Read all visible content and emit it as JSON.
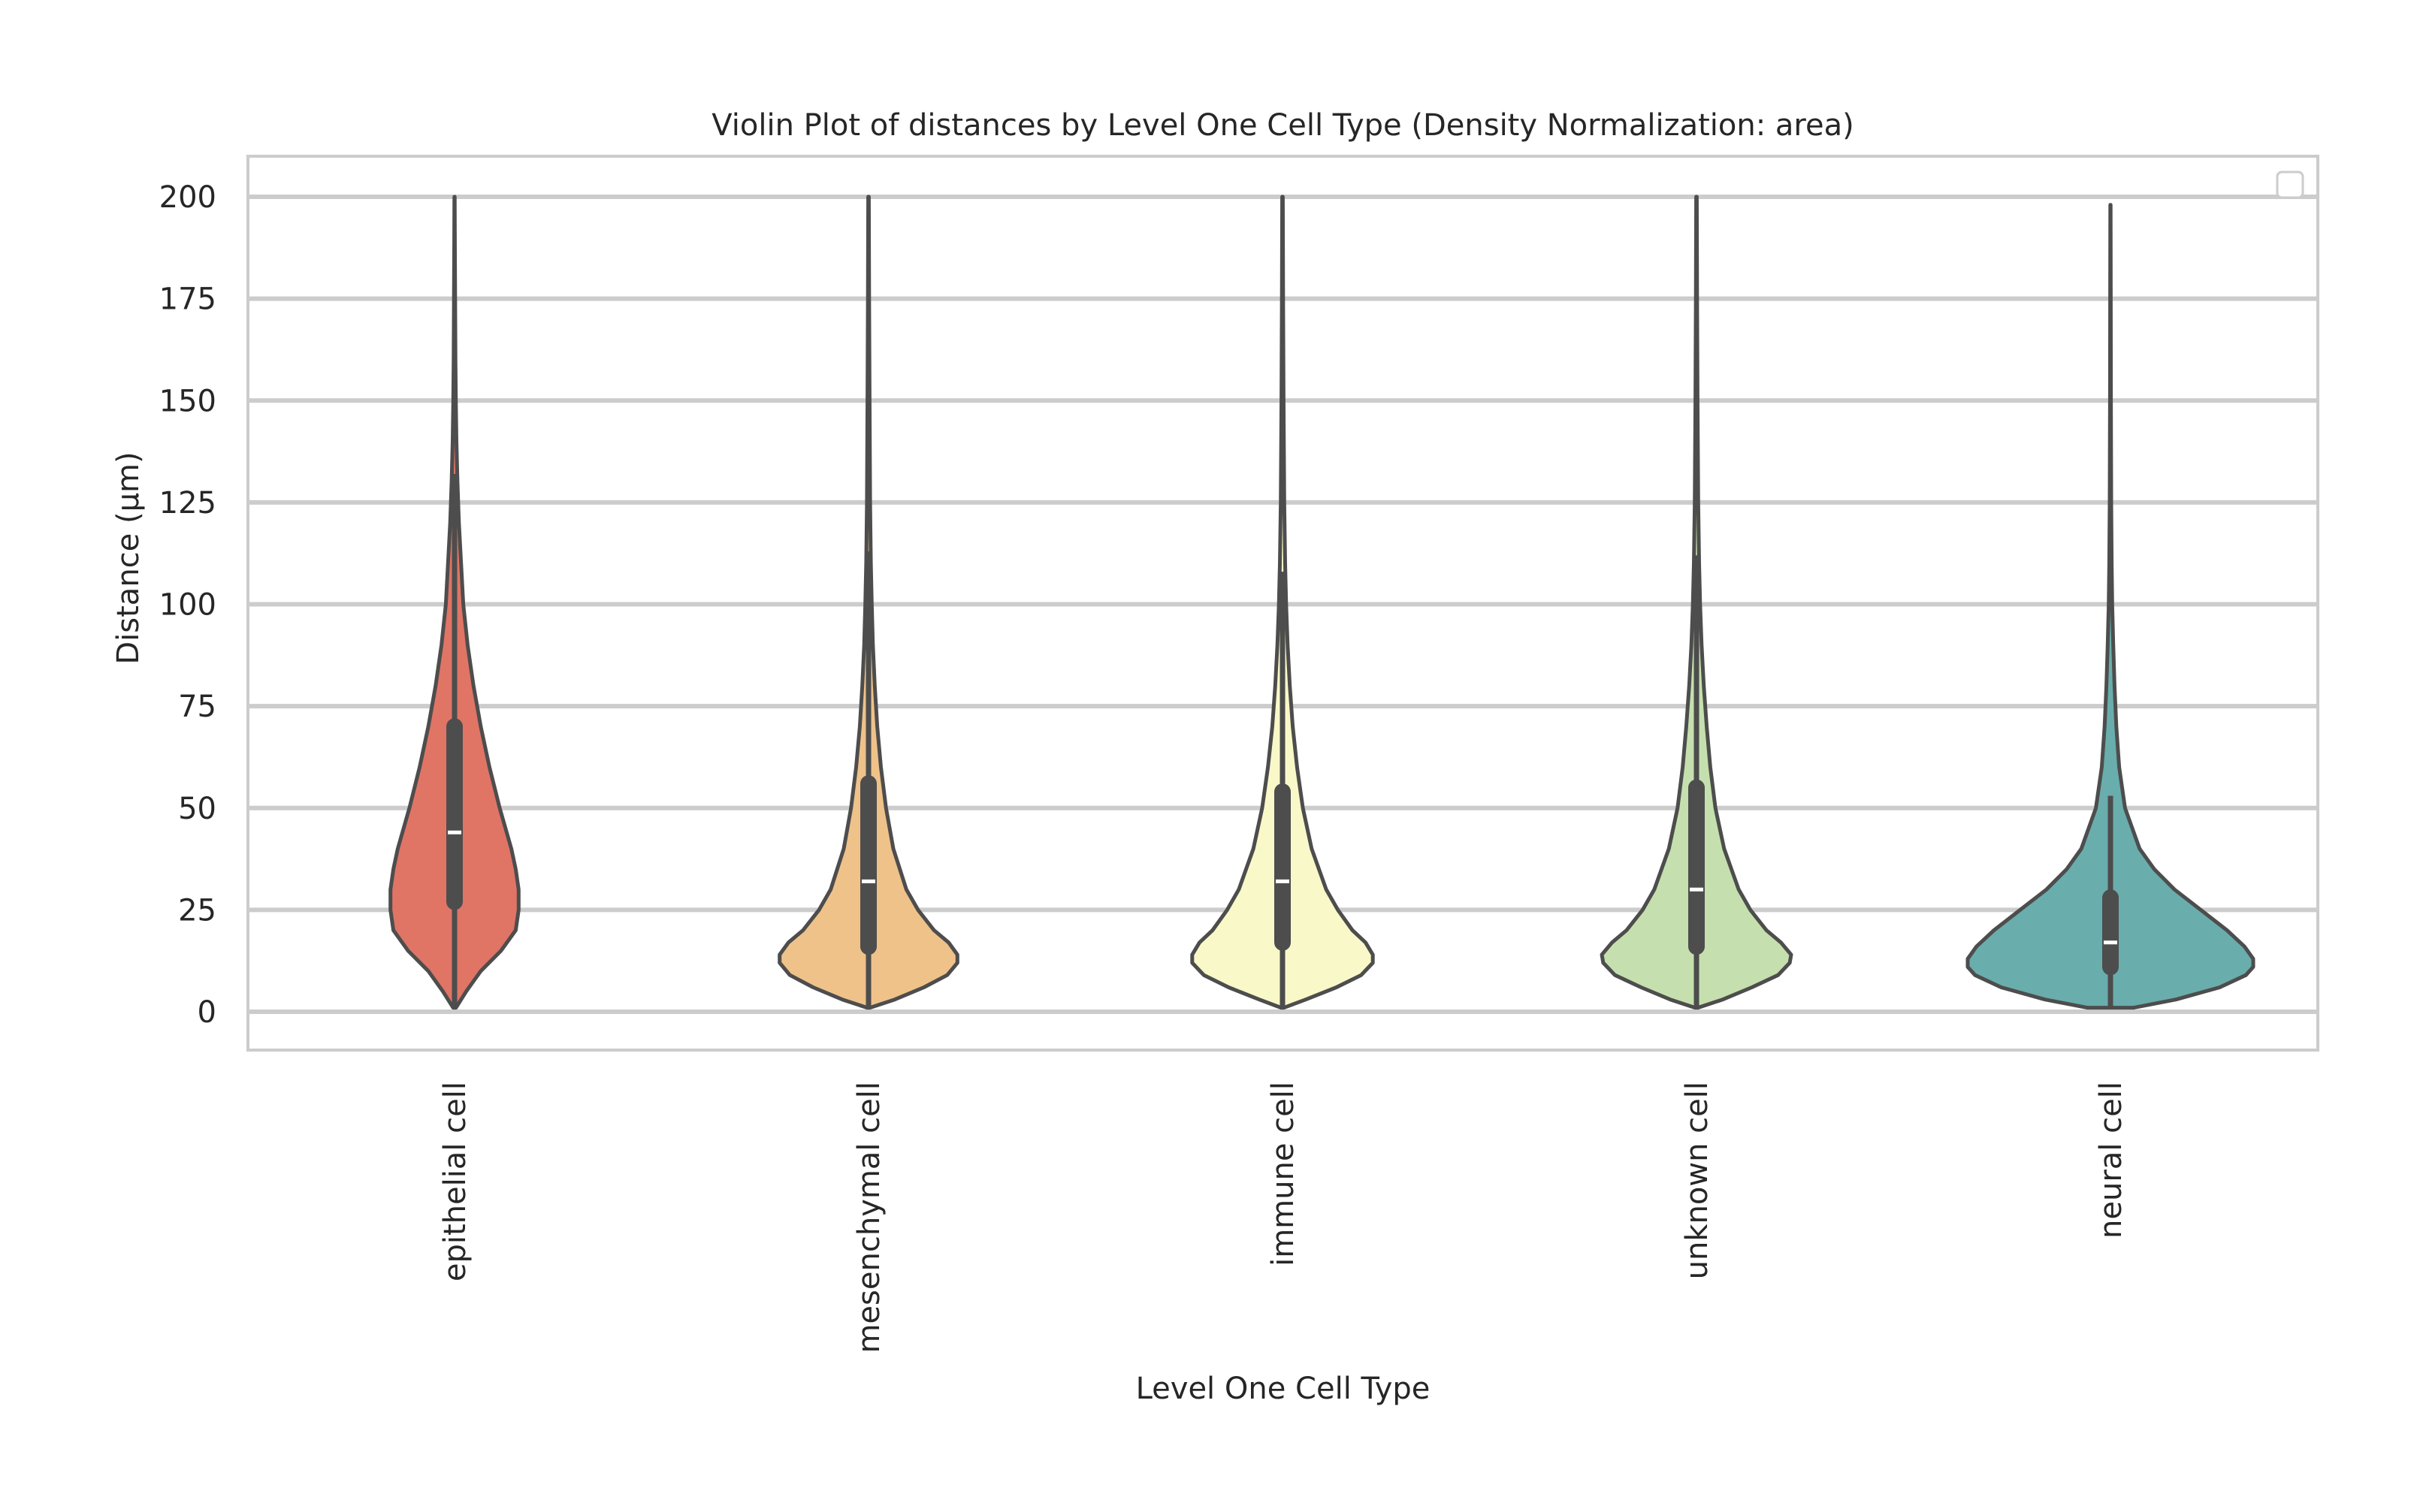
{
  "chart_data": {
    "type": "violin",
    "title": "Violin Plot of distances by Level One Cell Type (Density Normalization: area)",
    "xlabel": "Level One Cell Type",
    "ylabel": "Distance (µm)",
    "ylim": [
      -9,
      210
    ],
    "yticks": [
      0,
      25,
      50,
      75,
      100,
      125,
      150,
      175,
      200
    ],
    "grid": true,
    "legend": "top-right, empty",
    "categories": [
      "epithelial cell",
      "mesenchymal cell",
      "immune cell",
      "unknown cell",
      "neural cell"
    ],
    "colors": [
      "#e07566",
      "#efc28a",
      "#f9f8c8",
      "#c5e0ae",
      "#6aadad"
    ],
    "violins": [
      {
        "category": "epithelial cell",
        "min": 1,
        "max": 200,
        "q1": 27,
        "median": 44,
        "q3": 70,
        "whisker_low": 1,
        "whisker_high": 132,
        "density": [
          [
            1,
            0.01
          ],
          [
            5,
            0.08
          ],
          [
            10,
            0.18
          ],
          [
            15,
            0.32
          ],
          [
            20,
            0.42
          ],
          [
            25,
            0.44
          ],
          [
            30,
            0.44
          ],
          [
            35,
            0.42
          ],
          [
            40,
            0.39
          ],
          [
            50,
            0.31
          ],
          [
            60,
            0.24
          ],
          [
            70,
            0.18
          ],
          [
            80,
            0.13
          ],
          [
            90,
            0.09
          ],
          [
            100,
            0.06
          ],
          [
            110,
            0.045
          ],
          [
            120,
            0.03
          ],
          [
            130,
            0.02
          ],
          [
            140,
            0.013
          ],
          [
            150,
            0.009
          ],
          [
            160,
            0.006
          ],
          [
            175,
            0.004
          ],
          [
            190,
            0.002
          ],
          [
            200,
            0.001
          ]
        ]
      },
      {
        "category": "mesenchymal cell",
        "min": 1,
        "max": 200,
        "q1": 16,
        "median": 32,
        "q3": 56,
        "whisker_low": 1,
        "whisker_high": 113,
        "density": [
          [
            1,
            0.01
          ],
          [
            3,
            0.18
          ],
          [
            6,
            0.38
          ],
          [
            9,
            0.54
          ],
          [
            12,
            0.61
          ],
          [
            14,
            0.61
          ],
          [
            17,
            0.55
          ],
          [
            20,
            0.45
          ],
          [
            25,
            0.34
          ],
          [
            30,
            0.26
          ],
          [
            40,
            0.17
          ],
          [
            50,
            0.12
          ],
          [
            60,
            0.085
          ],
          [
            70,
            0.06
          ],
          [
            80,
            0.043
          ],
          [
            90,
            0.03
          ],
          [
            100,
            0.022
          ],
          [
            110,
            0.016
          ],
          [
            125,
            0.011
          ],
          [
            150,
            0.007
          ],
          [
            175,
            0.004
          ],
          [
            200,
            0.002
          ]
        ]
      },
      {
        "category": "immune cell",
        "min": 1,
        "max": 200,
        "q1": 17,
        "median": 32,
        "q3": 54,
        "whisker_low": 1,
        "whisker_high": 108,
        "density": [
          [
            1,
            0.01
          ],
          [
            3,
            0.16
          ],
          [
            6,
            0.37
          ],
          [
            9,
            0.54
          ],
          [
            12,
            0.62
          ],
          [
            14,
            0.62
          ],
          [
            17,
            0.57
          ],
          [
            20,
            0.48
          ],
          [
            25,
            0.38
          ],
          [
            30,
            0.3
          ],
          [
            40,
            0.2
          ],
          [
            50,
            0.14
          ],
          [
            60,
            0.1
          ],
          [
            70,
            0.07
          ],
          [
            80,
            0.05
          ],
          [
            90,
            0.035
          ],
          [
            100,
            0.025
          ],
          [
            110,
            0.018
          ],
          [
            125,
            0.012
          ],
          [
            150,
            0.007
          ],
          [
            175,
            0.004
          ],
          [
            200,
            0.002
          ]
        ]
      },
      {
        "category": "unknown cell",
        "min": 1,
        "max": 200,
        "q1": 16,
        "median": 30,
        "q3": 55,
        "whisker_low": 1,
        "whisker_high": 112,
        "density": [
          [
            1,
            0.01
          ],
          [
            3,
            0.18
          ],
          [
            6,
            0.38
          ],
          [
            9,
            0.56
          ],
          [
            12,
            0.64
          ],
          [
            14,
            0.65
          ],
          [
            17,
            0.58
          ],
          [
            20,
            0.48
          ],
          [
            25,
            0.37
          ],
          [
            30,
            0.29
          ],
          [
            40,
            0.19
          ],
          [
            50,
            0.13
          ],
          [
            60,
            0.095
          ],
          [
            70,
            0.07
          ],
          [
            80,
            0.05
          ],
          [
            90,
            0.035
          ],
          [
            100,
            0.025
          ],
          [
            110,
            0.018
          ],
          [
            125,
            0.012
          ],
          [
            150,
            0.007
          ],
          [
            175,
            0.004
          ],
          [
            200,
            0.002
          ]
        ]
      },
      {
        "category": "neural cell",
        "min": 1,
        "max": 198,
        "q1": 11,
        "median": 17,
        "q3": 28,
        "whisker_low": 1,
        "whisker_high": 53,
        "density": [
          [
            1,
            0.16
          ],
          [
            3,
            0.45
          ],
          [
            6,
            0.75
          ],
          [
            9,
            0.93
          ],
          [
            11,
            0.98
          ],
          [
            13,
            0.98
          ],
          [
            16,
            0.92
          ],
          [
            20,
            0.8
          ],
          [
            25,
            0.62
          ],
          [
            30,
            0.44
          ],
          [
            35,
            0.3
          ],
          [
            40,
            0.2
          ],
          [
            50,
            0.1
          ],
          [
            60,
            0.06
          ],
          [
            70,
            0.04
          ],
          [
            80,
            0.028
          ],
          [
            90,
            0.019
          ],
          [
            100,
            0.012
          ],
          [
            110,
            0.008
          ],
          [
            125,
            0.005
          ],
          [
            150,
            0.003
          ],
          [
            175,
            0.002
          ],
          [
            198,
            0.001
          ]
        ]
      }
    ]
  }
}
